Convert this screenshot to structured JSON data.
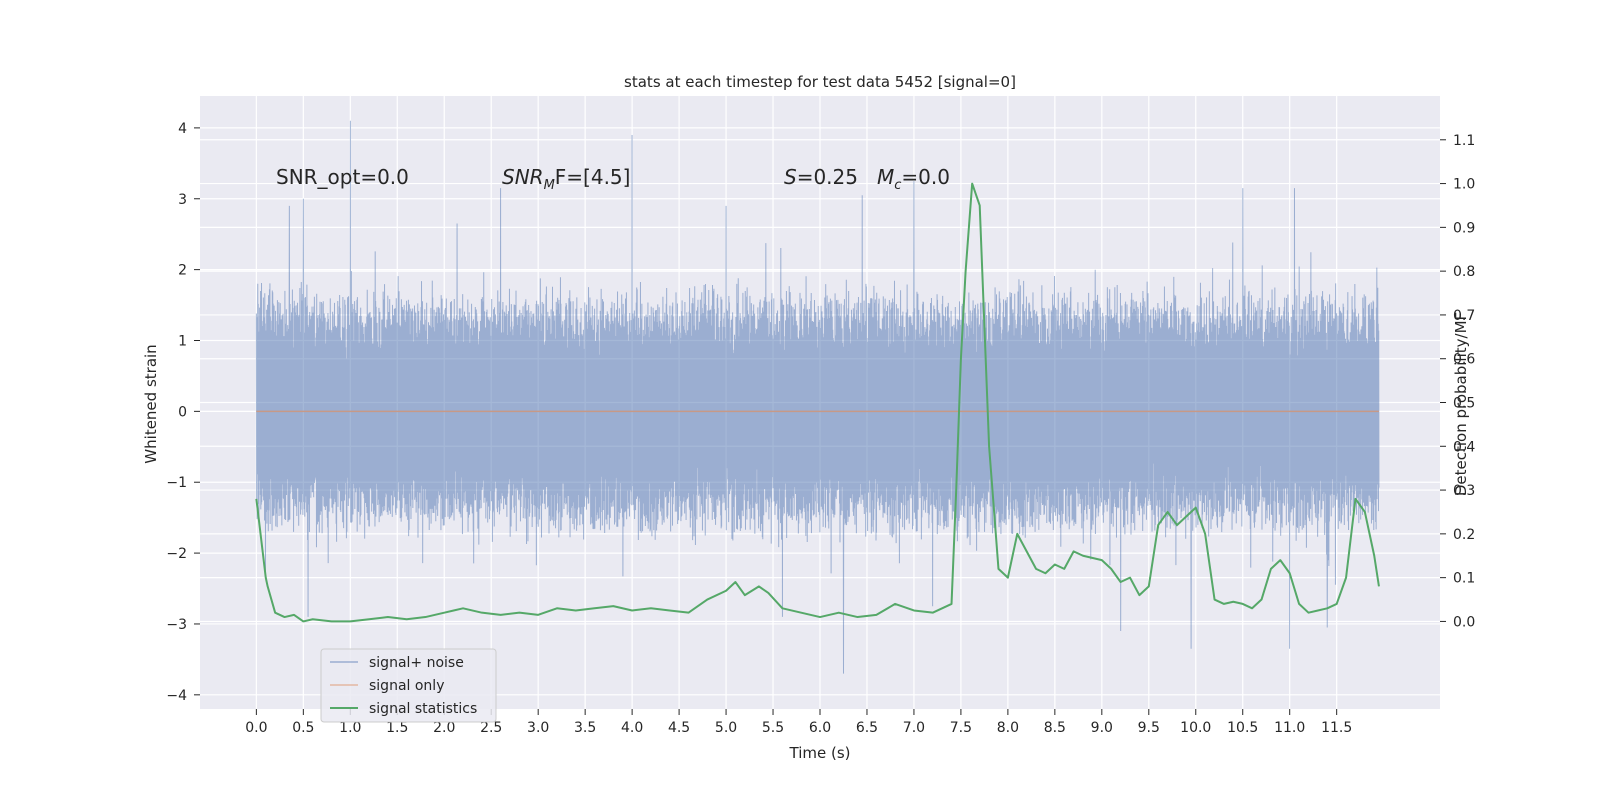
{
  "chart_data": {
    "type": "line",
    "title": "stats at each timestep for test data 5452 [signal=0]",
    "xlabel": "Time (s)",
    "ylabel_left": "Whitened strain",
    "ylabel_right": "Detection probability/MF",
    "xlim": [
      -0.6,
      12.6
    ],
    "ylim_left": [
      -4.2,
      4.45
    ],
    "ylim_right": [
      -0.2,
      1.2
    ],
    "x_ticks": [
      0.0,
      0.5,
      1.0,
      1.5,
      2.0,
      2.5,
      3.0,
      3.5,
      4.0,
      4.5,
      5.0,
      5.5,
      6.0,
      6.5,
      7.0,
      7.5,
      8.0,
      8.5,
      9.0,
      9.5,
      10.0,
      10.5,
      11.0,
      11.5
    ],
    "x_tick_labels": [
      "0.0",
      "0.5",
      "1.0",
      "1.5",
      "2.0",
      "2.5",
      "3.0",
      "3.5",
      "4.0",
      "4.5",
      "5.0",
      "5.5",
      "6.0",
      "6.5",
      "7.0",
      "7.5",
      "8.0",
      "8.5",
      "9.0",
      "9.5",
      "10.0",
      "10.5",
      "11.0",
      "11.5"
    ],
    "y_left_ticks": [
      4,
      3,
      2,
      1,
      0,
      -1,
      -2,
      -3,
      -4
    ],
    "y_left_tick_labels": [
      "4",
      "3",
      "2",
      "1",
      "0",
      "−1",
      "−2",
      "−3",
      "−4"
    ],
    "y_right_ticks": [
      1.1,
      1.0,
      0.9,
      0.8,
      0.7,
      0.6,
      0.5,
      0.4,
      0.3,
      0.2,
      0.1,
      0.0
    ],
    "y_right_tick_labels": [
      "1.1",
      "1.0",
      "0.9",
      "0.8",
      "0.7",
      "0.6",
      "0.5",
      "0.4",
      "0.3",
      "0.2",
      "0.1",
      "0.0"
    ],
    "grid": true,
    "legend_position": "lower-left",
    "annotations": {
      "snr_opt": "SNR_opt=0.0",
      "snr_mf_main": "SNR",
      "snr_mf_sub": "M",
      "snr_mf_rest": "F=[4.5]",
      "s_main": "S",
      "s_rest": "=0.25",
      "mc_main": "M",
      "mc_sub": "c",
      "mc_rest": "=0.0"
    },
    "series": [
      {
        "name": "signal+ noise",
        "color": "#4c72b0",
        "axis": "left",
        "kind": "noise",
        "t_start": 0.0,
        "t_end": 11.95,
        "typical_range": [
          -1.6,
          1.6
        ],
        "spikes": [
          [
            1.0,
            4.1
          ],
          [
            4.0,
            3.9
          ],
          [
            0.5,
            3.0
          ],
          [
            0.35,
            2.9
          ],
          [
            2.6,
            3.15
          ],
          [
            7.0,
            3.25
          ],
          [
            6.45,
            3.05
          ],
          [
            11.05,
            3.15
          ],
          [
            10.5,
            3.15
          ],
          [
            5.0,
            2.9
          ],
          [
            9.2,
            2.7
          ],
          [
            6.25,
            -3.7
          ],
          [
            9.95,
            -3.35
          ],
          [
            11.0,
            -3.35
          ],
          [
            9.2,
            -3.1
          ],
          [
            5.6,
            -2.9
          ],
          [
            0.55,
            -2.9
          ],
          [
            11.4,
            -3.05
          ],
          [
            7.2,
            -2.75
          ]
        ]
      },
      {
        "name": "signal only",
        "color": "#dd8452",
        "axis": "left",
        "x": [
          0.0,
          11.95
        ],
        "y": [
          0.0,
          0.0
        ]
      },
      {
        "name": "signal statistics",
        "color": "#55a868",
        "axis": "right",
        "x": [
          0.0,
          0.1,
          0.12,
          0.2,
          0.3,
          0.4,
          0.5,
          0.6,
          0.8,
          1.0,
          1.2,
          1.4,
          1.6,
          1.8,
          2.0,
          2.1,
          2.2,
          2.4,
          2.6,
          2.8,
          3.0,
          3.2,
          3.4,
          3.6,
          3.8,
          4.0,
          4.2,
          4.4,
          4.6,
          4.8,
          5.0,
          5.1,
          5.2,
          5.35,
          5.45,
          5.6,
          5.8,
          6.0,
          6.2,
          6.4,
          6.6,
          6.8,
          7.0,
          7.2,
          7.4,
          7.45,
          7.5,
          7.55,
          7.62,
          7.7,
          7.8,
          7.9,
          8.0,
          8.1,
          8.2,
          8.3,
          8.4,
          8.5,
          8.6,
          8.7,
          8.8,
          9.0,
          9.1,
          9.2,
          9.3,
          9.4,
          9.5,
          9.6,
          9.7,
          9.8,
          9.9,
          10.0,
          10.1,
          10.2,
          10.3,
          10.4,
          10.5,
          10.6,
          10.7,
          10.8,
          10.9,
          11.0,
          11.1,
          11.2,
          11.3,
          11.4,
          11.5,
          11.6,
          11.7,
          11.8,
          11.9,
          11.95
        ],
        "y": [
          0.28,
          0.1,
          0.08,
          0.02,
          0.01,
          0.015,
          0.0,
          0.005,
          0.0,
          0.0,
          0.005,
          0.01,
          0.005,
          0.01,
          0.02,
          0.025,
          0.03,
          0.02,
          0.015,
          0.02,
          0.015,
          0.03,
          0.025,
          0.03,
          0.035,
          0.025,
          0.03,
          0.025,
          0.02,
          0.05,
          0.07,
          0.09,
          0.06,
          0.08,
          0.065,
          0.03,
          0.02,
          0.01,
          0.02,
          0.01,
          0.015,
          0.04,
          0.025,
          0.02,
          0.04,
          0.3,
          0.6,
          0.8,
          1.0,
          0.95,
          0.4,
          0.12,
          0.1,
          0.2,
          0.16,
          0.12,
          0.11,
          0.13,
          0.12,
          0.16,
          0.15,
          0.14,
          0.12,
          0.09,
          0.1,
          0.06,
          0.08,
          0.22,
          0.25,
          0.22,
          0.24,
          0.26,
          0.2,
          0.05,
          0.04,
          0.045,
          0.04,
          0.03,
          0.05,
          0.12,
          0.14,
          0.11,
          0.04,
          0.02,
          0.025,
          0.03,
          0.04,
          0.1,
          0.28,
          0.25,
          0.15,
          0.08
        ]
      }
    ]
  }
}
